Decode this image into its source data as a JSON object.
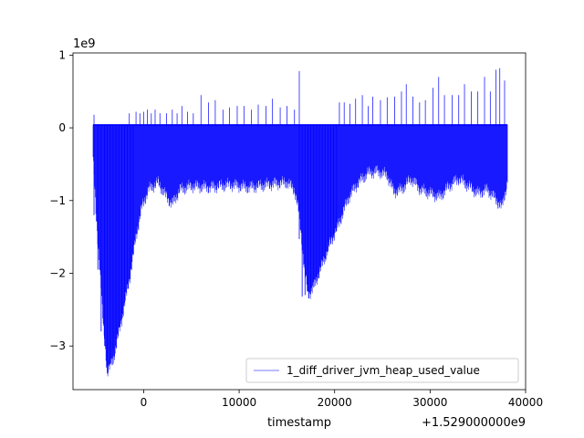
{
  "chart_data": {
    "type": "line",
    "title": "",
    "xlabel": "timestamp",
    "ylabel": "",
    "x_offset_label": "+1.529000000e9",
    "y_scale_label": "1e9",
    "xlim": [
      -7400,
      40000
    ],
    "ylim": [
      -3.6,
      1.03
    ],
    "x_ticks": [
      {
        "value": 0,
        "label": "0"
      },
      {
        "value": 10000,
        "label": "10000"
      },
      {
        "value": 20000,
        "label": "20000"
      },
      {
        "value": 30000,
        "label": "30000"
      },
      {
        "value": 40000,
        "label": "40000"
      }
    ],
    "y_ticks": [
      {
        "value": 1,
        "label": "1"
      },
      {
        "value": 0,
        "label": "0"
      },
      {
        "value": -1,
        "label": "−1"
      },
      {
        "value": -2,
        "label": "−2"
      },
      {
        "value": -3,
        "label": "−3"
      }
    ],
    "legend": {
      "position": "lower-right"
    },
    "series": [
      {
        "name": "1_diff_driver_jvm_heap_used_value",
        "color": "#0000ff",
        "x_range": [
          -5300,
          38100
        ],
        "baseline": 0.04,
        "lower_envelope": [
          [
            -5300,
            -0.4
          ],
          [
            -5000,
            -1.2
          ],
          [
            -4600,
            -1.9
          ],
          [
            -4200,
            -2.8
          ],
          [
            -3800,
            -3.35
          ],
          [
            -3200,
            -3.2
          ],
          [
            -2400,
            -2.7
          ],
          [
            -1500,
            -2.1
          ],
          [
            -800,
            -1.5
          ],
          [
            -200,
            -1.1
          ],
          [
            500,
            -0.85
          ],
          [
            1500,
            -0.75
          ],
          [
            2400,
            -0.95
          ],
          [
            3000,
            -1.05
          ],
          [
            3800,
            -0.85
          ],
          [
            5000,
            -0.8
          ],
          [
            7000,
            -0.82
          ],
          [
            9000,
            -0.78
          ],
          [
            11000,
            -0.82
          ],
          [
            13000,
            -0.78
          ],
          [
            15000,
            -0.75
          ],
          [
            15800,
            -0.85
          ],
          [
            16300,
            -1.2
          ],
          [
            16800,
            -1.9
          ],
          [
            17200,
            -2.3
          ],
          [
            17800,
            -2.2
          ],
          [
            18500,
            -1.95
          ],
          [
            19500,
            -1.6
          ],
          [
            20500,
            -1.3
          ],
          [
            21500,
            -0.95
          ],
          [
            22500,
            -0.75
          ],
          [
            23500,
            -0.62
          ],
          [
            24500,
            -0.6
          ],
          [
            25500,
            -0.65
          ],
          [
            26200,
            -0.88
          ],
          [
            27000,
            -0.85
          ],
          [
            28000,
            -0.7
          ],
          [
            29000,
            -0.85
          ],
          [
            30000,
            -0.9
          ],
          [
            31000,
            -0.95
          ],
          [
            32000,
            -0.8
          ],
          [
            33000,
            -0.7
          ],
          [
            34000,
            -0.8
          ],
          [
            35000,
            -0.9
          ],
          [
            36000,
            -0.85
          ],
          [
            37000,
            -1.0
          ],
          [
            37500,
            -1.1
          ],
          [
            38100,
            -0.75
          ]
        ],
        "deep_dips": [
          [
            -5200,
            -1.2
          ],
          [
            -4800,
            -1.95
          ],
          [
            -4450,
            -2.8
          ],
          [
            -4100,
            -2.9
          ],
          [
            -3800,
            -3.38
          ],
          [
            -3500,
            -3.25
          ],
          [
            -3200,
            -3.05
          ],
          [
            -2900,
            -2.9
          ],
          [
            -2600,
            -2.75
          ],
          [
            -2300,
            -2.55
          ],
          [
            -2000,
            -2.35
          ],
          [
            -1700,
            -2.15
          ],
          [
            -1400,
            -1.95
          ],
          [
            -1100,
            -1.75
          ],
          [
            16300,
            -1.53
          ],
          [
            16600,
            -2.32
          ],
          [
            16900,
            -2.3
          ],
          [
            17200,
            -2.25
          ],
          [
            17500,
            -2.2
          ],
          [
            17800,
            -2.12
          ],
          [
            18100,
            -2.05
          ],
          [
            18400,
            -1.98
          ],
          [
            18700,
            -1.9
          ],
          [
            19000,
            -1.8
          ],
          [
            19300,
            -1.7
          ],
          [
            19600,
            -1.6
          ],
          [
            19900,
            -1.5
          ],
          [
            20200,
            -1.42
          ]
        ],
        "spikes": [
          [
            -5200,
            0.18
          ],
          [
            -1500,
            0.2
          ],
          [
            -800,
            0.22
          ],
          [
            -400,
            0.2
          ],
          [
            0,
            0.22
          ],
          [
            400,
            0.25
          ],
          [
            800,
            0.2
          ],
          [
            1200,
            0.25
          ],
          [
            1700,
            0.2
          ],
          [
            2400,
            0.2
          ],
          [
            3000,
            0.25
          ],
          [
            3500,
            0.2
          ],
          [
            4000,
            0.3
          ],
          [
            4600,
            0.22
          ],
          [
            5200,
            0.2
          ],
          [
            6000,
            0.45
          ],
          [
            6800,
            0.35
          ],
          [
            7500,
            0.38
          ],
          [
            8300,
            0.25
          ],
          [
            9000,
            0.28
          ],
          [
            9800,
            0.3
          ],
          [
            10500,
            0.3
          ],
          [
            11300,
            0.25
          ],
          [
            12000,
            0.32
          ],
          [
            12800,
            0.3
          ],
          [
            13500,
            0.4
          ],
          [
            14300,
            0.28
          ],
          [
            15000,
            0.3
          ],
          [
            15800,
            0.25
          ],
          [
            16300,
            0.78
          ],
          [
            20500,
            0.35
          ],
          [
            21000,
            0.35
          ],
          [
            21600,
            0.33
          ],
          [
            22200,
            0.4
          ],
          [
            22900,
            0.45
          ],
          [
            23500,
            0.3
          ],
          [
            24000,
            0.43
          ],
          [
            24800,
            0.38
          ],
          [
            25500,
            0.42
          ],
          [
            26300,
            0.43
          ],
          [
            27000,
            0.5
          ],
          [
            27500,
            0.6
          ],
          [
            28200,
            0.43
          ],
          [
            28900,
            0.35
          ],
          [
            29500,
            0.38
          ],
          [
            30300,
            0.55
          ],
          [
            30900,
            0.7
          ],
          [
            31500,
            0.45
          ],
          [
            32300,
            0.45
          ],
          [
            33000,
            0.45
          ],
          [
            33600,
            0.6
          ],
          [
            34300,
            0.5
          ],
          [
            35000,
            0.5
          ],
          [
            35700,
            0.7
          ],
          [
            36300,
            0.5
          ],
          [
            36900,
            0.8
          ],
          [
            37300,
            0.82
          ],
          [
            37800,
            0.65
          ]
        ]
      }
    ]
  }
}
